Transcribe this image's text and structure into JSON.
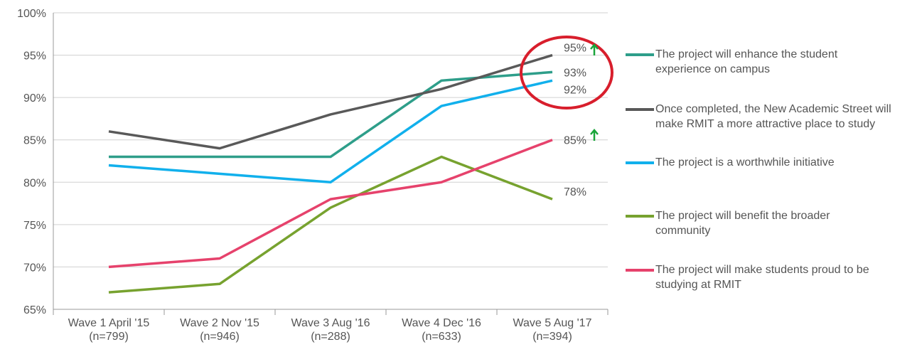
{
  "chart_data": {
    "type": "line",
    "categories": [
      [
        "Wave 1 April '15",
        "(n=799)"
      ],
      [
        "Wave 2 Nov '15",
        "(n=946)"
      ],
      [
        "Wave 3 Aug '16",
        "(n=288)"
      ],
      [
        "Wave 4 Dec '16",
        "(n=633)"
      ],
      [
        "Wave 5 Aug '17",
        "(n=394)"
      ]
    ],
    "ylim": [
      65,
      100
    ],
    "yticks": [
      {
        "value": 65,
        "label": "65%"
      },
      {
        "value": 70,
        "label": "70%"
      },
      {
        "value": 75,
        "label": "75%"
      },
      {
        "value": 80,
        "label": "80%"
      },
      {
        "value": 85,
        "label": "85%"
      },
      {
        "value": 90,
        "label": "90%"
      },
      {
        "value": 95,
        "label": "95%"
      },
      {
        "value": 100,
        "label": "100%"
      }
    ],
    "grid": true,
    "series": [
      {
        "name": "The project will enhance the student experience on campus",
        "color": "#2e9e8a",
        "values": [
          83,
          83,
          83,
          92,
          93
        ],
        "value_labels": [
          null,
          null,
          null,
          null,
          "93%"
        ]
      },
      {
        "name": "Once completed, the New Academic Street will make RMIT a more attractive place to study",
        "color": "#595959",
        "values": [
          86,
          84,
          88,
          91,
          95
        ],
        "value_labels": [
          null,
          null,
          null,
          null,
          "95%"
        ]
      },
      {
        "name": "The project is a worthwhile initiative",
        "color": "#11b0ec",
        "values": [
          82,
          81,
          80,
          89,
          92
        ],
        "value_labels": [
          null,
          null,
          null,
          null,
          "92%"
        ]
      },
      {
        "name": "The project will benefit the broader community",
        "color": "#77a22f",
        "values": [
          67,
          68,
          77,
          83,
          78
        ],
        "value_labels": [
          null,
          null,
          null,
          null,
          "78%"
        ]
      },
      {
        "name": "The project will make students proud to be studying at RMIT",
        "color": "#e6426c",
        "values": [
          70,
          71,
          78,
          80,
          85
        ],
        "value_labels": [
          null,
          null,
          null,
          null,
          "85%"
        ]
      }
    ]
  }
}
